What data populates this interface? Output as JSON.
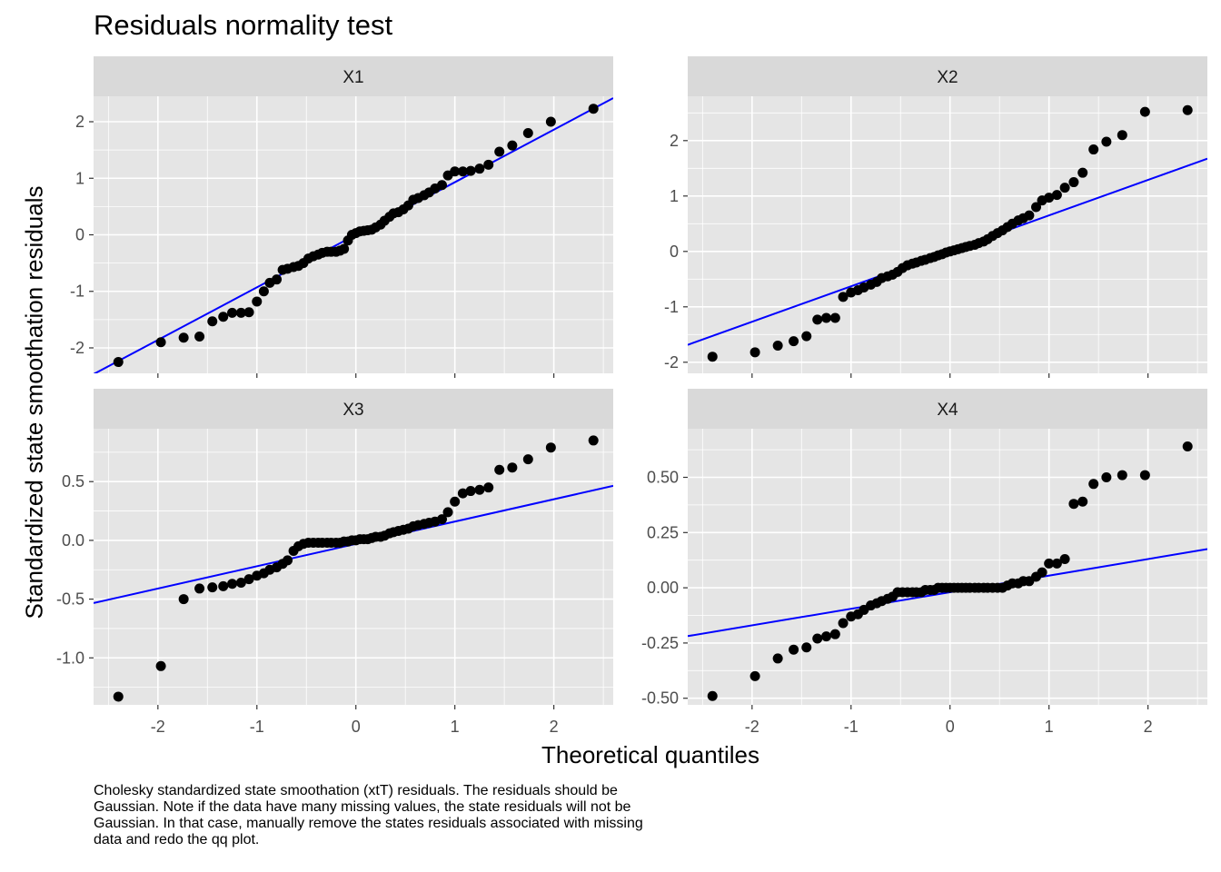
{
  "title": "Residuals normality test",
  "xlabel": "Theoretical quantiles",
  "ylabel": "Standardized state smoothation residuals",
  "caption": "Cholesky standardized state smoothation (xtT) residuals. The residuals should be Gaussian. Note if the data have many missing values, the state residuals will not be Gaussian. In that case, manually remove the states residuals associated with missing data and redo the qq plot.",
  "colors": {
    "panel_bg": "#e5e5e5",
    "strip_bg": "#d9d9d9",
    "grid": "#ffffff",
    "points": "#000000",
    "line": "#0000ff"
  },
  "chart_data": [
    {
      "type": "scatter",
      "panel": "X1",
      "xlim": [
        -2.65,
        2.6
      ],
      "ylim": [
        -2.45,
        2.45
      ],
      "x_ticks": [
        "-2",
        "-1",
        "0",
        "1",
        "2"
      ],
      "y_ticks": [
        "-2",
        "-1",
        "0",
        "1",
        "2"
      ],
      "y_tick_values": [
        -2,
        -1,
        0,
        1,
        2
      ],
      "reference_line": {
        "intercept": 0.0,
        "slope": 0.93
      },
      "points": [
        [
          -2.4,
          -2.25
        ],
        [
          -1.97,
          -1.9
        ],
        [
          -1.74,
          -1.82
        ],
        [
          -1.58,
          -1.8
        ],
        [
          -1.45,
          -1.53
        ],
        [
          -1.34,
          -1.45
        ],
        [
          -1.25,
          -1.38
        ],
        [
          -1.16,
          -1.38
        ],
        [
          -1.08,
          -1.37
        ],
        [
          -1.0,
          -1.18
        ],
        [
          -0.93,
          -1.0
        ],
        [
          -0.87,
          -0.85
        ],
        [
          -0.8,
          -0.79
        ],
        [
          -0.74,
          -0.62
        ],
        [
          -0.69,
          -0.6
        ],
        [
          -0.63,
          -0.57
        ],
        [
          -0.58,
          -0.55
        ],
        [
          -0.53,
          -0.5
        ],
        [
          -0.48,
          -0.42
        ],
        [
          -0.43,
          -0.38
        ],
        [
          -0.38,
          -0.35
        ],
        [
          -0.34,
          -0.32
        ],
        [
          -0.29,
          -0.3
        ],
        [
          -0.25,
          -0.3
        ],
        [
          -0.2,
          -0.3
        ],
        [
          -0.16,
          -0.28
        ],
        [
          -0.12,
          -0.25
        ],
        [
          -0.08,
          -0.1
        ],
        [
          -0.04,
          0.0
        ],
        [
          0.0,
          0.03
        ],
        [
          0.04,
          0.06
        ],
        [
          0.08,
          0.07
        ],
        [
          0.12,
          0.08
        ],
        [
          0.16,
          0.09
        ],
        [
          0.2,
          0.13
        ],
        [
          0.25,
          0.18
        ],
        [
          0.29,
          0.25
        ],
        [
          0.34,
          0.32
        ],
        [
          0.38,
          0.38
        ],
        [
          0.43,
          0.4
        ],
        [
          0.48,
          0.45
        ],
        [
          0.53,
          0.52
        ],
        [
          0.58,
          0.62
        ],
        [
          0.63,
          0.65
        ],
        [
          0.69,
          0.7
        ],
        [
          0.74,
          0.75
        ],
        [
          0.8,
          0.82
        ],
        [
          0.87,
          0.88
        ],
        [
          0.93,
          1.05
        ],
        [
          1.0,
          1.12
        ],
        [
          1.08,
          1.12
        ],
        [
          1.16,
          1.13
        ],
        [
          1.25,
          1.17
        ],
        [
          1.34,
          1.24
        ],
        [
          1.45,
          1.47
        ],
        [
          1.58,
          1.58
        ],
        [
          1.74,
          1.8
        ],
        [
          1.97,
          2.0
        ],
        [
          2.4,
          2.23
        ]
      ]
    },
    {
      "type": "scatter",
      "panel": "X2",
      "xlim": [
        -2.65,
        2.6
      ],
      "ylim": [
        -2.2,
        2.8
      ],
      "x_ticks": [
        "-2",
        "-1",
        "0",
        "1",
        "2"
      ],
      "y_ticks": [
        "-2",
        "-1",
        "0",
        "1",
        "2"
      ],
      "y_tick_values": [
        -2,
        -1,
        0,
        1,
        2
      ],
      "reference_line": {
        "intercept": 0.01,
        "slope": 0.64
      },
      "points": [
        [
          -2.4,
          -1.9
        ],
        [
          -1.97,
          -1.82
        ],
        [
          -1.74,
          -1.7
        ],
        [
          -1.58,
          -1.62
        ],
        [
          -1.45,
          -1.53
        ],
        [
          -1.34,
          -1.23
        ],
        [
          -1.25,
          -1.2
        ],
        [
          -1.16,
          -1.2
        ],
        [
          -1.08,
          -0.82
        ],
        [
          -1.0,
          -0.74
        ],
        [
          -0.93,
          -0.7
        ],
        [
          -0.87,
          -0.65
        ],
        [
          -0.8,
          -0.6
        ],
        [
          -0.74,
          -0.55
        ],
        [
          -0.69,
          -0.48
        ],
        [
          -0.63,
          -0.45
        ],
        [
          -0.58,
          -0.42
        ],
        [
          -0.53,
          -0.37
        ],
        [
          -0.48,
          -0.3
        ],
        [
          -0.43,
          -0.25
        ],
        [
          -0.38,
          -0.22
        ],
        [
          -0.34,
          -0.2
        ],
        [
          -0.29,
          -0.17
        ],
        [
          -0.25,
          -0.15
        ],
        [
          -0.2,
          -0.12
        ],
        [
          -0.16,
          -0.1
        ],
        [
          -0.12,
          -0.07
        ],
        [
          -0.08,
          -0.05
        ],
        [
          -0.04,
          -0.02
        ],
        [
          0.0,
          0.0
        ],
        [
          0.04,
          0.02
        ],
        [
          0.08,
          0.04
        ],
        [
          0.12,
          0.06
        ],
        [
          0.16,
          0.08
        ],
        [
          0.2,
          0.1
        ],
        [
          0.25,
          0.12
        ],
        [
          0.29,
          0.15
        ],
        [
          0.34,
          0.18
        ],
        [
          0.38,
          0.22
        ],
        [
          0.43,
          0.28
        ],
        [
          0.48,
          0.33
        ],
        [
          0.53,
          0.38
        ],
        [
          0.58,
          0.44
        ],
        [
          0.63,
          0.5
        ],
        [
          0.69,
          0.56
        ],
        [
          0.74,
          0.6
        ],
        [
          0.8,
          0.65
        ],
        [
          0.87,
          0.8
        ],
        [
          0.93,
          0.92
        ],
        [
          1.0,
          0.97
        ],
        [
          1.08,
          1.02
        ],
        [
          1.16,
          1.15
        ],
        [
          1.25,
          1.25
        ],
        [
          1.34,
          1.42
        ],
        [
          1.45,
          1.84
        ],
        [
          1.58,
          1.98
        ],
        [
          1.74,
          2.1
        ],
        [
          1.97,
          2.52
        ],
        [
          2.4,
          2.55
        ]
      ]
    },
    {
      "type": "scatter",
      "panel": "X3",
      "xlim": [
        -2.65,
        2.6
      ],
      "ylim": [
        -1.4,
        0.95
      ],
      "x_ticks": [
        "-2",
        "-1",
        "0",
        "1",
        "2"
      ],
      "y_ticks": [
        "-1.0",
        "-0.5",
        "0.0",
        "0.5"
      ],
      "y_tick_values": [
        -1.0,
        -0.5,
        0.0,
        0.5
      ],
      "reference_line": {
        "intercept": -0.03,
        "slope": 0.19
      },
      "points": [
        [
          -2.4,
          -1.33
        ],
        [
          -1.97,
          -1.07
        ],
        [
          -1.74,
          -0.5
        ],
        [
          -1.58,
          -0.41
        ],
        [
          -1.45,
          -0.4
        ],
        [
          -1.34,
          -0.39
        ],
        [
          -1.25,
          -0.37
        ],
        [
          -1.16,
          -0.36
        ],
        [
          -1.08,
          -0.33
        ],
        [
          -1.0,
          -0.3
        ],
        [
          -0.93,
          -0.28
        ],
        [
          -0.87,
          -0.25
        ],
        [
          -0.8,
          -0.23
        ],
        [
          -0.74,
          -0.2
        ],
        [
          -0.69,
          -0.17
        ],
        [
          -0.63,
          -0.09
        ],
        [
          -0.58,
          -0.05
        ],
        [
          -0.53,
          -0.03
        ],
        [
          -0.48,
          -0.02
        ],
        [
          -0.43,
          -0.02
        ],
        [
          -0.38,
          -0.02
        ],
        [
          -0.34,
          -0.02
        ],
        [
          -0.29,
          -0.02
        ],
        [
          -0.25,
          -0.02
        ],
        [
          -0.2,
          -0.02
        ],
        [
          -0.16,
          -0.02
        ],
        [
          -0.12,
          -0.01
        ],
        [
          -0.08,
          -0.01
        ],
        [
          -0.04,
          0.0
        ],
        [
          0.0,
          0.0
        ],
        [
          0.04,
          0.01
        ],
        [
          0.08,
          0.01
        ],
        [
          0.12,
          0.01
        ],
        [
          0.16,
          0.02
        ],
        [
          0.2,
          0.03
        ],
        [
          0.25,
          0.03
        ],
        [
          0.29,
          0.04
        ],
        [
          0.34,
          0.06
        ],
        [
          0.38,
          0.07
        ],
        [
          0.43,
          0.08
        ],
        [
          0.48,
          0.09
        ],
        [
          0.53,
          0.1
        ],
        [
          0.58,
          0.12
        ],
        [
          0.63,
          0.13
        ],
        [
          0.69,
          0.14
        ],
        [
          0.74,
          0.15
        ],
        [
          0.8,
          0.16
        ],
        [
          0.87,
          0.18
        ],
        [
          0.93,
          0.24
        ],
        [
          1.0,
          0.33
        ],
        [
          1.08,
          0.4
        ],
        [
          1.16,
          0.42
        ],
        [
          1.25,
          0.43
        ],
        [
          1.34,
          0.45
        ],
        [
          1.45,
          0.6
        ],
        [
          1.58,
          0.62
        ],
        [
          1.74,
          0.69
        ],
        [
          1.97,
          0.79
        ],
        [
          2.4,
          0.85
        ]
      ]
    },
    {
      "type": "scatter",
      "panel": "X4",
      "xlim": [
        -2.65,
        2.6
      ],
      "ylim": [
        -0.53,
        0.72
      ],
      "x_ticks": [
        "-2",
        "-1",
        "0",
        "1",
        "2"
      ],
      "y_ticks": [
        "-0.50",
        "-0.25",
        "0.00",
        "0.25",
        "0.50"
      ],
      "y_tick_values": [
        -0.5,
        -0.25,
        0.0,
        0.25,
        0.5
      ],
      "reference_line": {
        "intercept": -0.02,
        "slope": 0.075
      },
      "points": [
        [
          -2.4,
          -0.49
        ],
        [
          -1.97,
          -0.4
        ],
        [
          -1.74,
          -0.32
        ],
        [
          -1.58,
          -0.28
        ],
        [
          -1.45,
          -0.27
        ],
        [
          -1.34,
          -0.23
        ],
        [
          -1.25,
          -0.22
        ],
        [
          -1.16,
          -0.21
        ],
        [
          -1.08,
          -0.16
        ],
        [
          -1.0,
          -0.13
        ],
        [
          -0.93,
          -0.12
        ],
        [
          -0.87,
          -0.1
        ],
        [
          -0.8,
          -0.08
        ],
        [
          -0.74,
          -0.07
        ],
        [
          -0.69,
          -0.06
        ],
        [
          -0.63,
          -0.05
        ],
        [
          -0.58,
          -0.04
        ],
        [
          -0.53,
          -0.02
        ],
        [
          -0.48,
          -0.02
        ],
        [
          -0.43,
          -0.02
        ],
        [
          -0.38,
          -0.02
        ],
        [
          -0.34,
          -0.02
        ],
        [
          -0.29,
          -0.02
        ],
        [
          -0.25,
          -0.01
        ],
        [
          -0.2,
          -0.01
        ],
        [
          -0.16,
          -0.01
        ],
        [
          -0.12,
          0.0
        ],
        [
          -0.08,
          0.0
        ],
        [
          -0.04,
          0.0
        ],
        [
          0.0,
          0.0
        ],
        [
          0.04,
          0.0
        ],
        [
          0.08,
          0.0
        ],
        [
          0.12,
          0.0
        ],
        [
          0.16,
          0.0
        ],
        [
          0.2,
          0.0
        ],
        [
          0.25,
          0.0
        ],
        [
          0.29,
          0.0
        ],
        [
          0.34,
          0.0
        ],
        [
          0.38,
          0.0
        ],
        [
          0.43,
          0.0
        ],
        [
          0.48,
          0.0
        ],
        [
          0.53,
          0.0
        ],
        [
          0.58,
          0.01
        ],
        [
          0.63,
          0.02
        ],
        [
          0.69,
          0.02
        ],
        [
          0.74,
          0.03
        ],
        [
          0.8,
          0.03
        ],
        [
          0.87,
          0.05
        ],
        [
          0.93,
          0.07
        ],
        [
          1.0,
          0.11
        ],
        [
          1.08,
          0.11
        ],
        [
          1.16,
          0.13
        ],
        [
          1.25,
          0.38
        ],
        [
          1.34,
          0.39
        ],
        [
          1.45,
          0.47
        ],
        [
          1.58,
          0.5
        ],
        [
          1.74,
          0.51
        ],
        [
          1.97,
          0.51
        ],
        [
          2.4,
          0.64
        ]
      ]
    }
  ]
}
